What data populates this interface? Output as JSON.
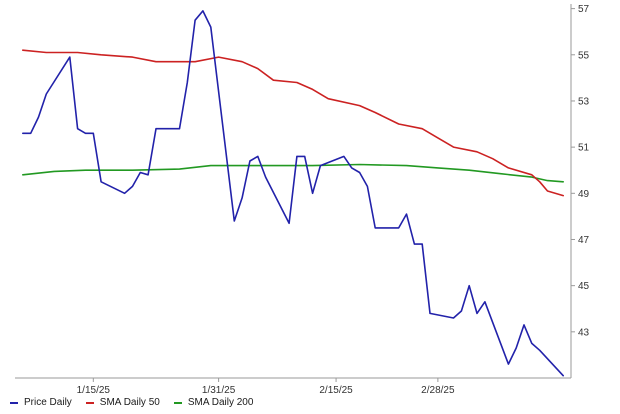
{
  "chart_data": {
    "type": "line",
    "title": "",
    "xlabel": "",
    "ylabel": "",
    "ylim": [
      41.0,
      57.2
    ],
    "y_ticks": [
      57,
      55,
      53,
      51,
      49,
      47,
      45,
      43
    ],
    "y_axis_side": "right",
    "grid": false,
    "legend_position": "bottom-left",
    "x_tick_labels": [
      {
        "date": "2025-01-15",
        "label": "1/15/25"
      },
      {
        "date": "2025-01-31",
        "label": "1/31/25"
      },
      {
        "date": "2025-02-15",
        "label": "2/15/25"
      },
      {
        "date": "2025-02-28",
        "label": "2/28/25"
      }
    ],
    "xlim": [
      "2025-01-05",
      "2025-03-17"
    ],
    "series": [
      {
        "name": "Price Daily",
        "color": "#2222aa",
        "points": [
          [
            "2025-01-06",
            51.6
          ],
          [
            "2025-01-07",
            51.6
          ],
          [
            "2025-01-08",
            52.3
          ],
          [
            "2025-01-09",
            53.3
          ],
          [
            "2025-01-12",
            54.9
          ],
          [
            "2025-01-13",
            51.8
          ],
          [
            "2025-01-14",
            51.6
          ],
          [
            "2025-01-15",
            51.6
          ],
          [
            "2025-01-16",
            49.5
          ],
          [
            "2025-01-19",
            49.0
          ],
          [
            "2025-01-20",
            49.3
          ],
          [
            "2025-01-21",
            49.9
          ],
          [
            "2025-01-22",
            49.8
          ],
          [
            "2025-01-23",
            51.8
          ],
          [
            "2025-01-26",
            51.8
          ],
          [
            "2025-01-27",
            53.8
          ],
          [
            "2025-01-28",
            56.5
          ],
          [
            "2025-01-29",
            56.9
          ],
          [
            "2025-01-30",
            56.2
          ],
          [
            "2025-02-02",
            47.8
          ],
          [
            "2025-02-03",
            48.8
          ],
          [
            "2025-02-04",
            50.4
          ],
          [
            "2025-02-05",
            50.6
          ],
          [
            "2025-02-06",
            49.7
          ],
          [
            "2025-02-09",
            47.7
          ],
          [
            "2025-02-10",
            50.6
          ],
          [
            "2025-02-11",
            50.6
          ],
          [
            "2025-02-12",
            49.0
          ],
          [
            "2025-02-13",
            50.2
          ],
          [
            "2025-02-16",
            50.6
          ],
          [
            "2025-02-17",
            50.1
          ],
          [
            "2025-02-18",
            49.9
          ],
          [
            "2025-02-19",
            49.3
          ],
          [
            "2025-02-20",
            47.5
          ],
          [
            "2025-02-23",
            47.5
          ],
          [
            "2025-02-24",
            48.1
          ],
          [
            "2025-02-25",
            46.8
          ],
          [
            "2025-02-26",
            46.8
          ],
          [
            "2025-02-27",
            43.8
          ],
          [
            "2025-03-02",
            43.6
          ],
          [
            "2025-03-03",
            43.9
          ],
          [
            "2025-03-04",
            45.0
          ],
          [
            "2025-03-05",
            43.8
          ],
          [
            "2025-03-06",
            44.3
          ],
          [
            "2025-03-09",
            41.6
          ],
          [
            "2025-03-10",
            42.3
          ],
          [
            "2025-03-11",
            43.3
          ],
          [
            "2025-03-12",
            42.5
          ],
          [
            "2025-03-13",
            42.2
          ],
          [
            "2025-03-16",
            41.1
          ]
        ]
      },
      {
        "name": "SMA Daily 50",
        "color": "#cc2222",
        "points": [
          [
            "2025-01-06",
            55.2
          ],
          [
            "2025-01-09",
            55.1
          ],
          [
            "2025-01-13",
            55.1
          ],
          [
            "2025-01-16",
            55.0
          ],
          [
            "2025-01-20",
            54.9
          ],
          [
            "2025-01-23",
            54.7
          ],
          [
            "2025-01-28",
            54.7
          ],
          [
            "2025-01-31",
            54.9
          ],
          [
            "2025-02-03",
            54.7
          ],
          [
            "2025-02-05",
            54.4
          ],
          [
            "2025-02-07",
            53.9
          ],
          [
            "2025-02-10",
            53.8
          ],
          [
            "2025-02-12",
            53.5
          ],
          [
            "2025-02-14",
            53.1
          ],
          [
            "2025-02-18",
            52.8
          ],
          [
            "2025-02-20",
            52.5
          ],
          [
            "2025-02-23",
            52.0
          ],
          [
            "2025-02-26",
            51.8
          ],
          [
            "2025-02-28",
            51.4
          ],
          [
            "2025-03-02",
            51.0
          ],
          [
            "2025-03-05",
            50.8
          ],
          [
            "2025-03-07",
            50.5
          ],
          [
            "2025-03-09",
            50.1
          ],
          [
            "2025-03-12",
            49.8
          ],
          [
            "2025-03-13",
            49.5
          ],
          [
            "2025-03-14",
            49.1
          ],
          [
            "2025-03-16",
            48.9
          ]
        ]
      },
      {
        "name": "SMA Daily 200",
        "color": "#229922",
        "points": [
          [
            "2025-01-06",
            49.8
          ],
          [
            "2025-01-10",
            49.95
          ],
          [
            "2025-01-14",
            50.0
          ],
          [
            "2025-01-20",
            50.0
          ],
          [
            "2025-01-26",
            50.05
          ],
          [
            "2025-01-30",
            50.2
          ],
          [
            "2025-02-05",
            50.2
          ],
          [
            "2025-02-12",
            50.2
          ],
          [
            "2025-02-18",
            50.25
          ],
          [
            "2025-02-24",
            50.2
          ],
          [
            "2025-02-28",
            50.1
          ],
          [
            "2025-03-04",
            50.0
          ],
          [
            "2025-03-08",
            49.85
          ],
          [
            "2025-03-12",
            49.7
          ],
          [
            "2025-03-14",
            49.55
          ],
          [
            "2025-03-16",
            49.5
          ]
        ]
      }
    ]
  }
}
